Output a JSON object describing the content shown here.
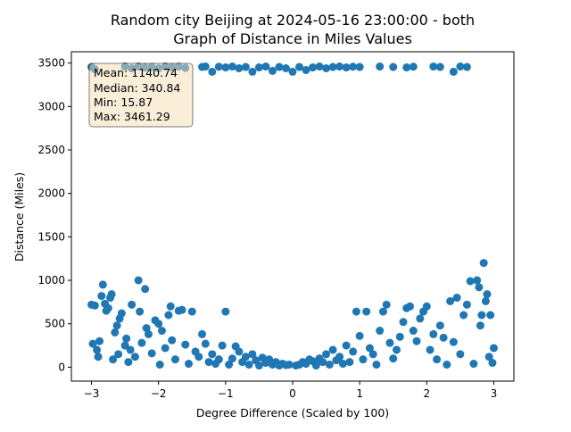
{
  "chart_data": {
    "type": "scatter",
    "title_line1": "Random city Beijing at 2024-05-16 23:00:00  - both",
    "title_line2": "Graph of Distance in Miles Values",
    "xlabel": "Degree Difference (Scaled by 100)",
    "ylabel": "Distance (Miles)",
    "xlim": [
      -3.3,
      3.3
    ],
    "ylim": [
      -160,
      3630
    ],
    "x_ticks": [
      -3,
      -2,
      -1,
      0,
      1,
      2,
      3
    ],
    "x_tick_labels": [
      "−3",
      "−2",
      "−1",
      "0",
      "1",
      "2",
      "3"
    ],
    "y_ticks": [
      0,
      500,
      1000,
      1500,
      2000,
      2500,
      3000,
      3500
    ],
    "y_tick_labels": [
      "0",
      "500",
      "1000",
      "1500",
      "2000",
      "2500",
      "3000",
      "3500"
    ],
    "grid": false,
    "marker_color": "#1f77b4",
    "stats": {
      "mean": "Mean: 1140.74",
      "median": "Median: 340.84",
      "min": "Min: 15.87",
      "max": "Max: 3461.29"
    },
    "stats_box_fill": "#f5deb3",
    "points": [
      {
        "x": -3.0,
        "y": 720
      },
      {
        "x": -2.95,
        "y": 710
      },
      {
        "x": -2.98,
        "y": 270
      },
      {
        "x": -2.92,
        "y": 200
      },
      {
        "x": -2.9,
        "y": 120
      },
      {
        "x": -2.88,
        "y": 300
      },
      {
        "x": -2.85,
        "y": 820
      },
      {
        "x": -2.83,
        "y": 950
      },
      {
        "x": -2.8,
        "y": 730
      },
      {
        "x": -2.78,
        "y": 650
      },
      {
        "x": -2.75,
        "y": 680
      },
      {
        "x": -2.72,
        "y": 800
      },
      {
        "x": -2.7,
        "y": 840
      },
      {
        "x": -2.68,
        "y": 90
      },
      {
        "x": -2.65,
        "y": 400
      },
      {
        "x": -2.62,
        "y": 480
      },
      {
        "x": -2.6,
        "y": 150
      },
      {
        "x": -2.58,
        "y": 560
      },
      {
        "x": -2.55,
        "y": 620
      },
      {
        "x": -2.5,
        "y": 250
      },
      {
        "x": -2.48,
        "y": 330
      },
      {
        "x": -2.45,
        "y": 60
      },
      {
        "x": -2.42,
        "y": 200
      },
      {
        "x": -2.4,
        "y": 720
      },
      {
        "x": -2.35,
        "y": 120
      },
      {
        "x": -2.3,
        "y": 1000
      },
      {
        "x": -2.28,
        "y": 640
      },
      {
        "x": -2.25,
        "y": 280
      },
      {
        "x": -2.2,
        "y": 900
      },
      {
        "x": -2.18,
        "y": 450
      },
      {
        "x": -2.15,
        "y": 380
      },
      {
        "x": -2.1,
        "y": 160
      },
      {
        "x": -2.05,
        "y": 540
      },
      {
        "x": -2.0,
        "y": 500
      },
      {
        "x": -1.98,
        "y": 30
      },
      {
        "x": -1.95,
        "y": 420
      },
      {
        "x": -1.9,
        "y": 220
      },
      {
        "x": -1.85,
        "y": 600
      },
      {
        "x": -1.82,
        "y": 700
      },
      {
        "x": -1.8,
        "y": 310
      },
      {
        "x": -1.75,
        "y": 90
      },
      {
        "x": -1.7,
        "y": 650
      },
      {
        "x": -1.65,
        "y": 660
      },
      {
        "x": -1.6,
        "y": 260
      },
      {
        "x": -1.55,
        "y": 40
      },
      {
        "x": -1.5,
        "y": 640
      },
      {
        "x": -1.45,
        "y": 180
      },
      {
        "x": -1.4,
        "y": 120
      },
      {
        "x": -1.35,
        "y": 380
      },
      {
        "x": -1.3,
        "y": 270
      },
      {
        "x": -1.25,
        "y": 60
      },
      {
        "x": -1.2,
        "y": 150
      },
      {
        "x": -1.15,
        "y": 40
      },
      {
        "x": -1.1,
        "y": 90
      },
      {
        "x": -1.05,
        "y": 250
      },
      {
        "x": -1.0,
        "y": 640
      },
      {
        "x": -0.95,
        "y": 30
      },
      {
        "x": -0.9,
        "y": 100
      },
      {
        "x": -0.85,
        "y": 240
      },
      {
        "x": -0.8,
        "y": 180
      },
      {
        "x": -0.75,
        "y": 60
      },
      {
        "x": -0.7,
        "y": 120
      },
      {
        "x": -0.65,
        "y": 30
      },
      {
        "x": -0.6,
        "y": 150
      },
      {
        "x": -0.55,
        "y": 80
      },
      {
        "x": -0.5,
        "y": 20
      },
      {
        "x": -0.45,
        "y": 110
      },
      {
        "x": -0.4,
        "y": 50
      },
      {
        "x": -0.35,
        "y": 90
      },
      {
        "x": -0.3,
        "y": 30
      },
      {
        "x": -0.25,
        "y": 60
      },
      {
        "x": -0.2,
        "y": 20
      },
      {
        "x": -0.15,
        "y": 40
      },
      {
        "x": -0.1,
        "y": 25
      },
      {
        "x": -0.05,
        "y": 30
      },
      {
        "x": 0.05,
        "y": 20
      },
      {
        "x": 0.1,
        "y": 30
      },
      {
        "x": 0.15,
        "y": 60
      },
      {
        "x": 0.2,
        "y": 40
      },
      {
        "x": 0.25,
        "y": 90
      },
      {
        "x": 0.3,
        "y": 70
      },
      {
        "x": 0.35,
        "y": 20
      },
      {
        "x": 0.4,
        "y": 100
      },
      {
        "x": 0.45,
        "y": 60
      },
      {
        "x": 0.5,
        "y": 150
      },
      {
        "x": 0.55,
        "y": 30
      },
      {
        "x": 0.6,
        "y": 200
      },
      {
        "x": 0.65,
        "y": 80
      },
      {
        "x": 0.7,
        "y": 120
      },
      {
        "x": 0.75,
        "y": 40
      },
      {
        "x": 0.8,
        "y": 250
      },
      {
        "x": 0.85,
        "y": 60
      },
      {
        "x": 0.9,
        "y": 180
      },
      {
        "x": 0.95,
        "y": 640
      },
      {
        "x": 1.0,
        "y": 360
      },
      {
        "x": 1.05,
        "y": 90
      },
      {
        "x": 1.1,
        "y": 640
      },
      {
        "x": 1.15,
        "y": 220
      },
      {
        "x": 1.2,
        "y": 150
      },
      {
        "x": 1.25,
        "y": 30
      },
      {
        "x": 1.3,
        "y": 420
      },
      {
        "x": 1.35,
        "y": 640
      },
      {
        "x": 1.4,
        "y": 720
      },
      {
        "x": 1.45,
        "y": 280
      },
      {
        "x": 1.5,
        "y": 100
      },
      {
        "x": 1.55,
        "y": 200
      },
      {
        "x": 1.6,
        "y": 350
      },
      {
        "x": 1.65,
        "y": 520
      },
      {
        "x": 1.7,
        "y": 680
      },
      {
        "x": 1.75,
        "y": 700
      },
      {
        "x": 1.8,
        "y": 420
      },
      {
        "x": 1.85,
        "y": 300
      },
      {
        "x": 1.9,
        "y": 560
      },
      {
        "x": 1.95,
        "y": 640
      },
      {
        "x": 2.0,
        "y": 700
      },
      {
        "x": 2.05,
        "y": 200
      },
      {
        "x": 2.1,
        "y": 380
      },
      {
        "x": 2.15,
        "y": 90
      },
      {
        "x": 2.2,
        "y": 480
      },
      {
        "x": 2.25,
        "y": 340
      },
      {
        "x": 2.3,
        "y": 30
      },
      {
        "x": 2.35,
        "y": 760
      },
      {
        "x": 2.4,
        "y": 290
      },
      {
        "x": 2.45,
        "y": 800
      },
      {
        "x": 2.5,
        "y": 150
      },
      {
        "x": 2.55,
        "y": 600
      },
      {
        "x": 2.6,
        "y": 720
      },
      {
        "x": 2.65,
        "y": 990
      },
      {
        "x": 2.7,
        "y": 40
      },
      {
        "x": 2.75,
        "y": 1000
      },
      {
        "x": 2.78,
        "y": 920
      },
      {
        "x": 2.8,
        "y": 480
      },
      {
        "x": 2.82,
        "y": 600
      },
      {
        "x": 2.85,
        "y": 1200
      },
      {
        "x": 2.88,
        "y": 760
      },
      {
        "x": 2.9,
        "y": 840
      },
      {
        "x": 2.93,
        "y": 120
      },
      {
        "x": 2.95,
        "y": 600
      },
      {
        "x": 2.98,
        "y": 50
      },
      {
        "x": 3.0,
        "y": 220
      },
      {
        "x": -3.0,
        "y": 3455
      },
      {
        "x": -2.95,
        "y": 3430
      },
      {
        "x": -2.5,
        "y": 3460
      },
      {
        "x": -2.4,
        "y": 3440
      },
      {
        "x": -2.3,
        "y": 3461
      },
      {
        "x": -2.2,
        "y": 3450
      },
      {
        "x": -2.1,
        "y": 3455
      },
      {
        "x": -2.0,
        "y": 3440
      },
      {
        "x": -1.9,
        "y": 3460
      },
      {
        "x": -1.8,
        "y": 3452
      },
      {
        "x": -1.7,
        "y": 3458
      },
      {
        "x": -1.6,
        "y": 3445
      },
      {
        "x": -1.35,
        "y": 3455
      },
      {
        "x": -1.3,
        "y": 3460
      },
      {
        "x": -1.2,
        "y": 3400
      },
      {
        "x": -1.1,
        "y": 3458
      },
      {
        "x": -1.0,
        "y": 3450
      },
      {
        "x": -0.9,
        "y": 3460
      },
      {
        "x": -0.8,
        "y": 3440
      },
      {
        "x": -0.7,
        "y": 3455
      },
      {
        "x": -0.6,
        "y": 3400
      },
      {
        "x": -0.5,
        "y": 3450
      },
      {
        "x": -0.4,
        "y": 3460
      },
      {
        "x": -0.3,
        "y": 3410
      },
      {
        "x": -0.2,
        "y": 3455
      },
      {
        "x": -0.1,
        "y": 3440
      },
      {
        "x": 0.0,
        "y": 3400
      },
      {
        "x": 0.1,
        "y": 3455
      },
      {
        "x": 0.2,
        "y": 3420
      },
      {
        "x": 0.3,
        "y": 3450
      },
      {
        "x": 0.4,
        "y": 3460
      },
      {
        "x": 0.5,
        "y": 3440
      },
      {
        "x": 0.6,
        "y": 3455
      },
      {
        "x": 0.7,
        "y": 3460
      },
      {
        "x": 0.8,
        "y": 3450
      },
      {
        "x": 0.9,
        "y": 3458
      },
      {
        "x": 1.0,
        "y": 3455
      },
      {
        "x": 1.3,
        "y": 3460
      },
      {
        "x": 1.5,
        "y": 3455
      },
      {
        "x": 1.7,
        "y": 3450
      },
      {
        "x": 1.8,
        "y": 3458
      },
      {
        "x": 2.1,
        "y": 3460
      },
      {
        "x": 2.2,
        "y": 3455
      },
      {
        "x": 2.4,
        "y": 3400
      },
      {
        "x": 2.5,
        "y": 3460
      },
      {
        "x": 2.6,
        "y": 3455
      }
    ]
  }
}
